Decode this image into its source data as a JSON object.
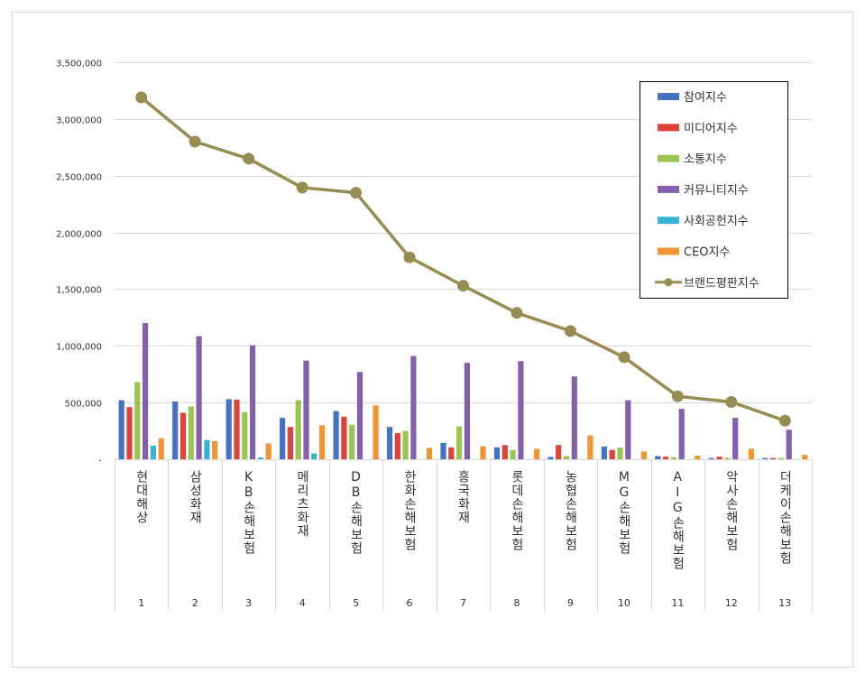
{
  "chart_data": {
    "type": "bar",
    "title": "",
    "xlabel": "",
    "ylabel": "",
    "ylim": [
      0,
      3500000
    ],
    "yticks": [
      0,
      500000,
      1000000,
      1500000,
      2000000,
      2500000,
      3000000,
      3500000
    ],
    "ytick_labels": [
      "-",
      "500,000",
      "1,000,000",
      "1,500,000",
      "2,000,000",
      "2,500,000",
      "3,000,000",
      "3,500,000"
    ],
    "grid": true,
    "legend_position": "top-right",
    "categories": [
      {
        "name": "현대해상",
        "rank": "1"
      },
      {
        "name": "삼성화재",
        "rank": "2"
      },
      {
        "name": "KB손해보험",
        "rank": "3"
      },
      {
        "name": "메리츠화재",
        "rank": "4"
      },
      {
        "name": "DB손해보험",
        "rank": "5"
      },
      {
        "name": "한화손해보험",
        "rank": "6"
      },
      {
        "name": "흥국화재",
        "rank": "7"
      },
      {
        "name": "롯데손해보험",
        "rank": "8"
      },
      {
        "name": "농협손해보험",
        "rank": "9"
      },
      {
        "name": "MG손해보험",
        "rank": "10"
      },
      {
        "name": "AIG손해보험",
        "rank": "11"
      },
      {
        "name": "악사손해보험",
        "rank": "12"
      },
      {
        "name": "더케이손해보험",
        "rank": "13"
      }
    ],
    "series": [
      {
        "name": "참여지수",
        "kind": "bar",
        "color": "#4472C4",
        "values": [
          520000,
          510000,
          530000,
          365000,
          425000,
          285000,
          145000,
          105000,
          20000,
          112000,
          28000,
          10000,
          10000
        ]
      },
      {
        "name": "미디어지수",
        "kind": "bar",
        "color": "#E0413A",
        "values": [
          460000,
          410000,
          525000,
          285000,
          375000,
          230000,
          105000,
          125000,
          125000,
          82000,
          22000,
          22000,
          10000
        ]
      },
      {
        "name": "소통지수",
        "kind": "bar",
        "color": "#9BC552",
        "values": [
          680000,
          465000,
          415000,
          520000,
          305000,
          250000,
          290000,
          82000,
          28000,
          102000,
          18000,
          12000,
          12000
        ]
      },
      {
        "name": "커뮤니티지수",
        "kind": "bar",
        "color": "#8460AC",
        "values": [
          1200000,
          1085000,
          1005000,
          870000,
          770000,
          910000,
          850000,
          865000,
          730000,
          520000,
          445000,
          365000,
          260000
        ]
      },
      {
        "name": "사회공헌지수",
        "kind": "bar",
        "color": "#39B3D3",
        "values": [
          120000,
          170000,
          15000,
          52000,
          0,
          0,
          0,
          0,
          0,
          0,
          0,
          0,
          0
        ]
      },
      {
        "name": "CEO지수",
        "kind": "bar",
        "color": "#F29432",
        "values": [
          185000,
          160000,
          140000,
          300000,
          475000,
          100000,
          115000,
          92000,
          210000,
          68000,
          32000,
          92000,
          38000
        ]
      },
      {
        "name": "브랜드평판지수",
        "kind": "line",
        "color": "#968D52",
        "values": [
          3190000,
          2800000,
          2650000,
          2395000,
          2350000,
          1780000,
          1530000,
          1290000,
          1130000,
          900000,
          555000,
          505000,
          340000
        ]
      }
    ]
  }
}
